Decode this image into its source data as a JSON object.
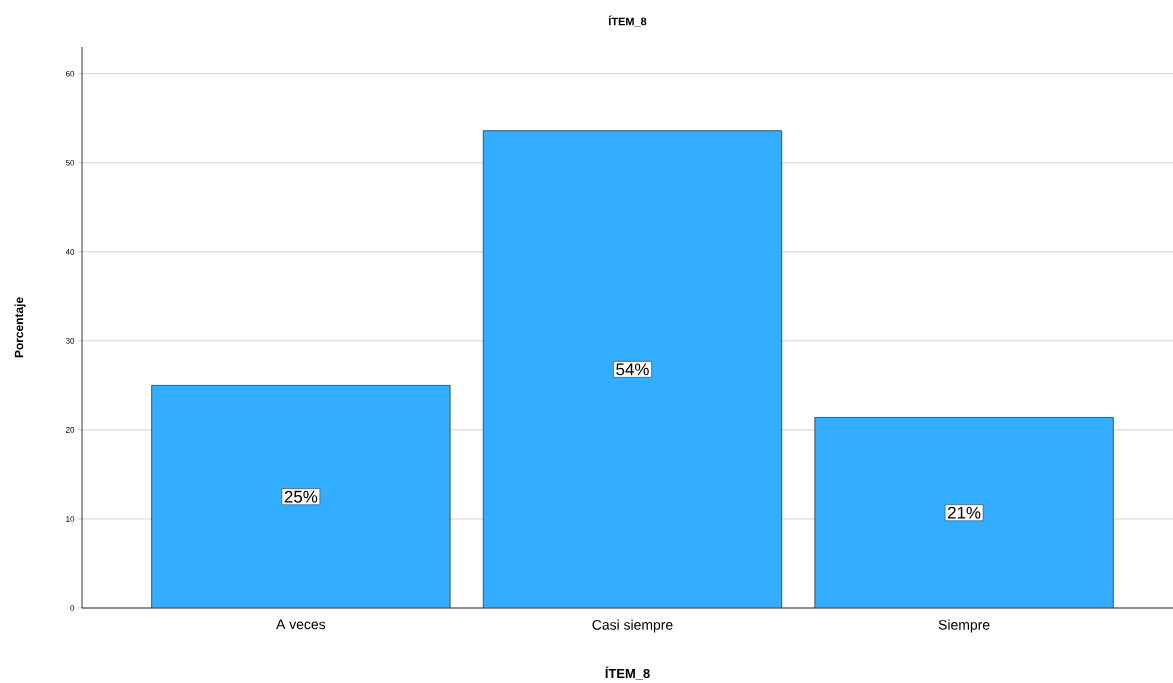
{
  "chart_data": {
    "type": "bar",
    "title": "ÍTEM_8",
    "xlabel": "ÍTEM_8",
    "ylabel": "Porcentaje",
    "categories": [
      "A veces",
      "Casi siempre",
      "Siempre"
    ],
    "values": [
      25,
      53.6,
      21.4
    ],
    "value_labels": [
      "25%",
      "54%",
      "21%"
    ],
    "color": "#33adff",
    "ylim": [
      0,
      63
    ],
    "yticks": [
      0,
      10,
      20,
      30,
      40,
      50,
      60
    ],
    "grid": "y"
  }
}
